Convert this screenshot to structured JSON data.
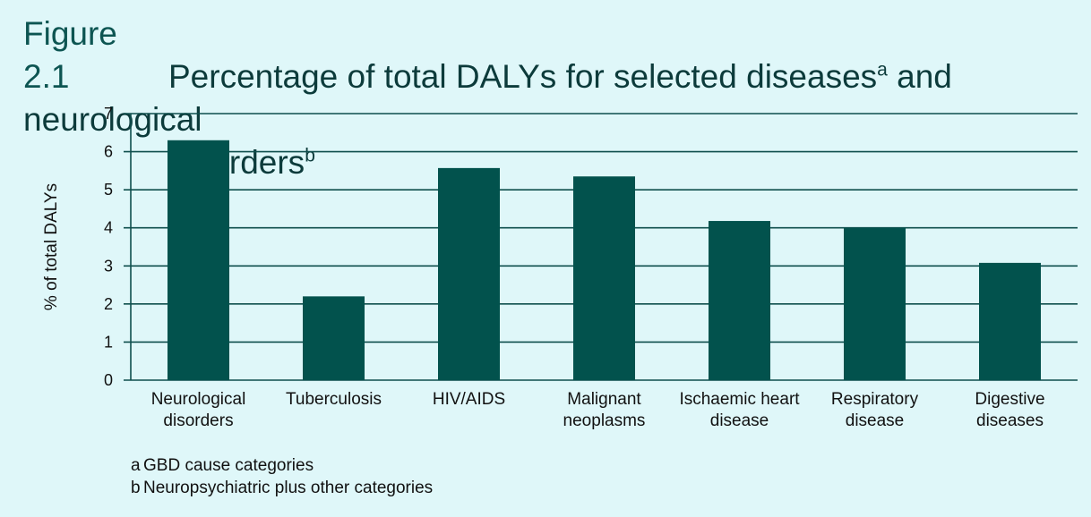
{
  "title": {
    "figure_label": "Figure 2.1",
    "text_part1": "Percentage of total DALYs for selected diseases",
    "sup1": "a",
    "text_part2": " and neurological",
    "text_line2": "disorders",
    "sup2": "b"
  },
  "footnotes": [
    {
      "mark": "a",
      "text": "GBD cause categories"
    },
    {
      "mark": "b",
      "text": "Neuropsychiatric plus other categories"
    }
  ],
  "colors": {
    "bar": "#02524d",
    "grid": "#0f4f4d",
    "background": "#dff7f9"
  },
  "chart_data": {
    "type": "bar",
    "ylabel": "% of total DALYs",
    "ylim": [
      0,
      7
    ],
    "yticks": [
      0,
      1,
      2,
      3,
      4,
      5,
      6,
      7
    ],
    "grid": true,
    "categories": [
      [
        "Neurological",
        "disorders"
      ],
      [
        "Tuberculosis"
      ],
      [
        "HIV/AIDS"
      ],
      [
        "Malignant",
        "neoplasms"
      ],
      [
        "Ischaemic heart",
        "disease"
      ],
      [
        "Respiratory",
        "disease"
      ],
      [
        "Digestive",
        "diseases"
      ]
    ],
    "values": [
      6.3,
      2.2,
      5.57,
      5.35,
      4.18,
      4.0,
      3.08
    ]
  }
}
